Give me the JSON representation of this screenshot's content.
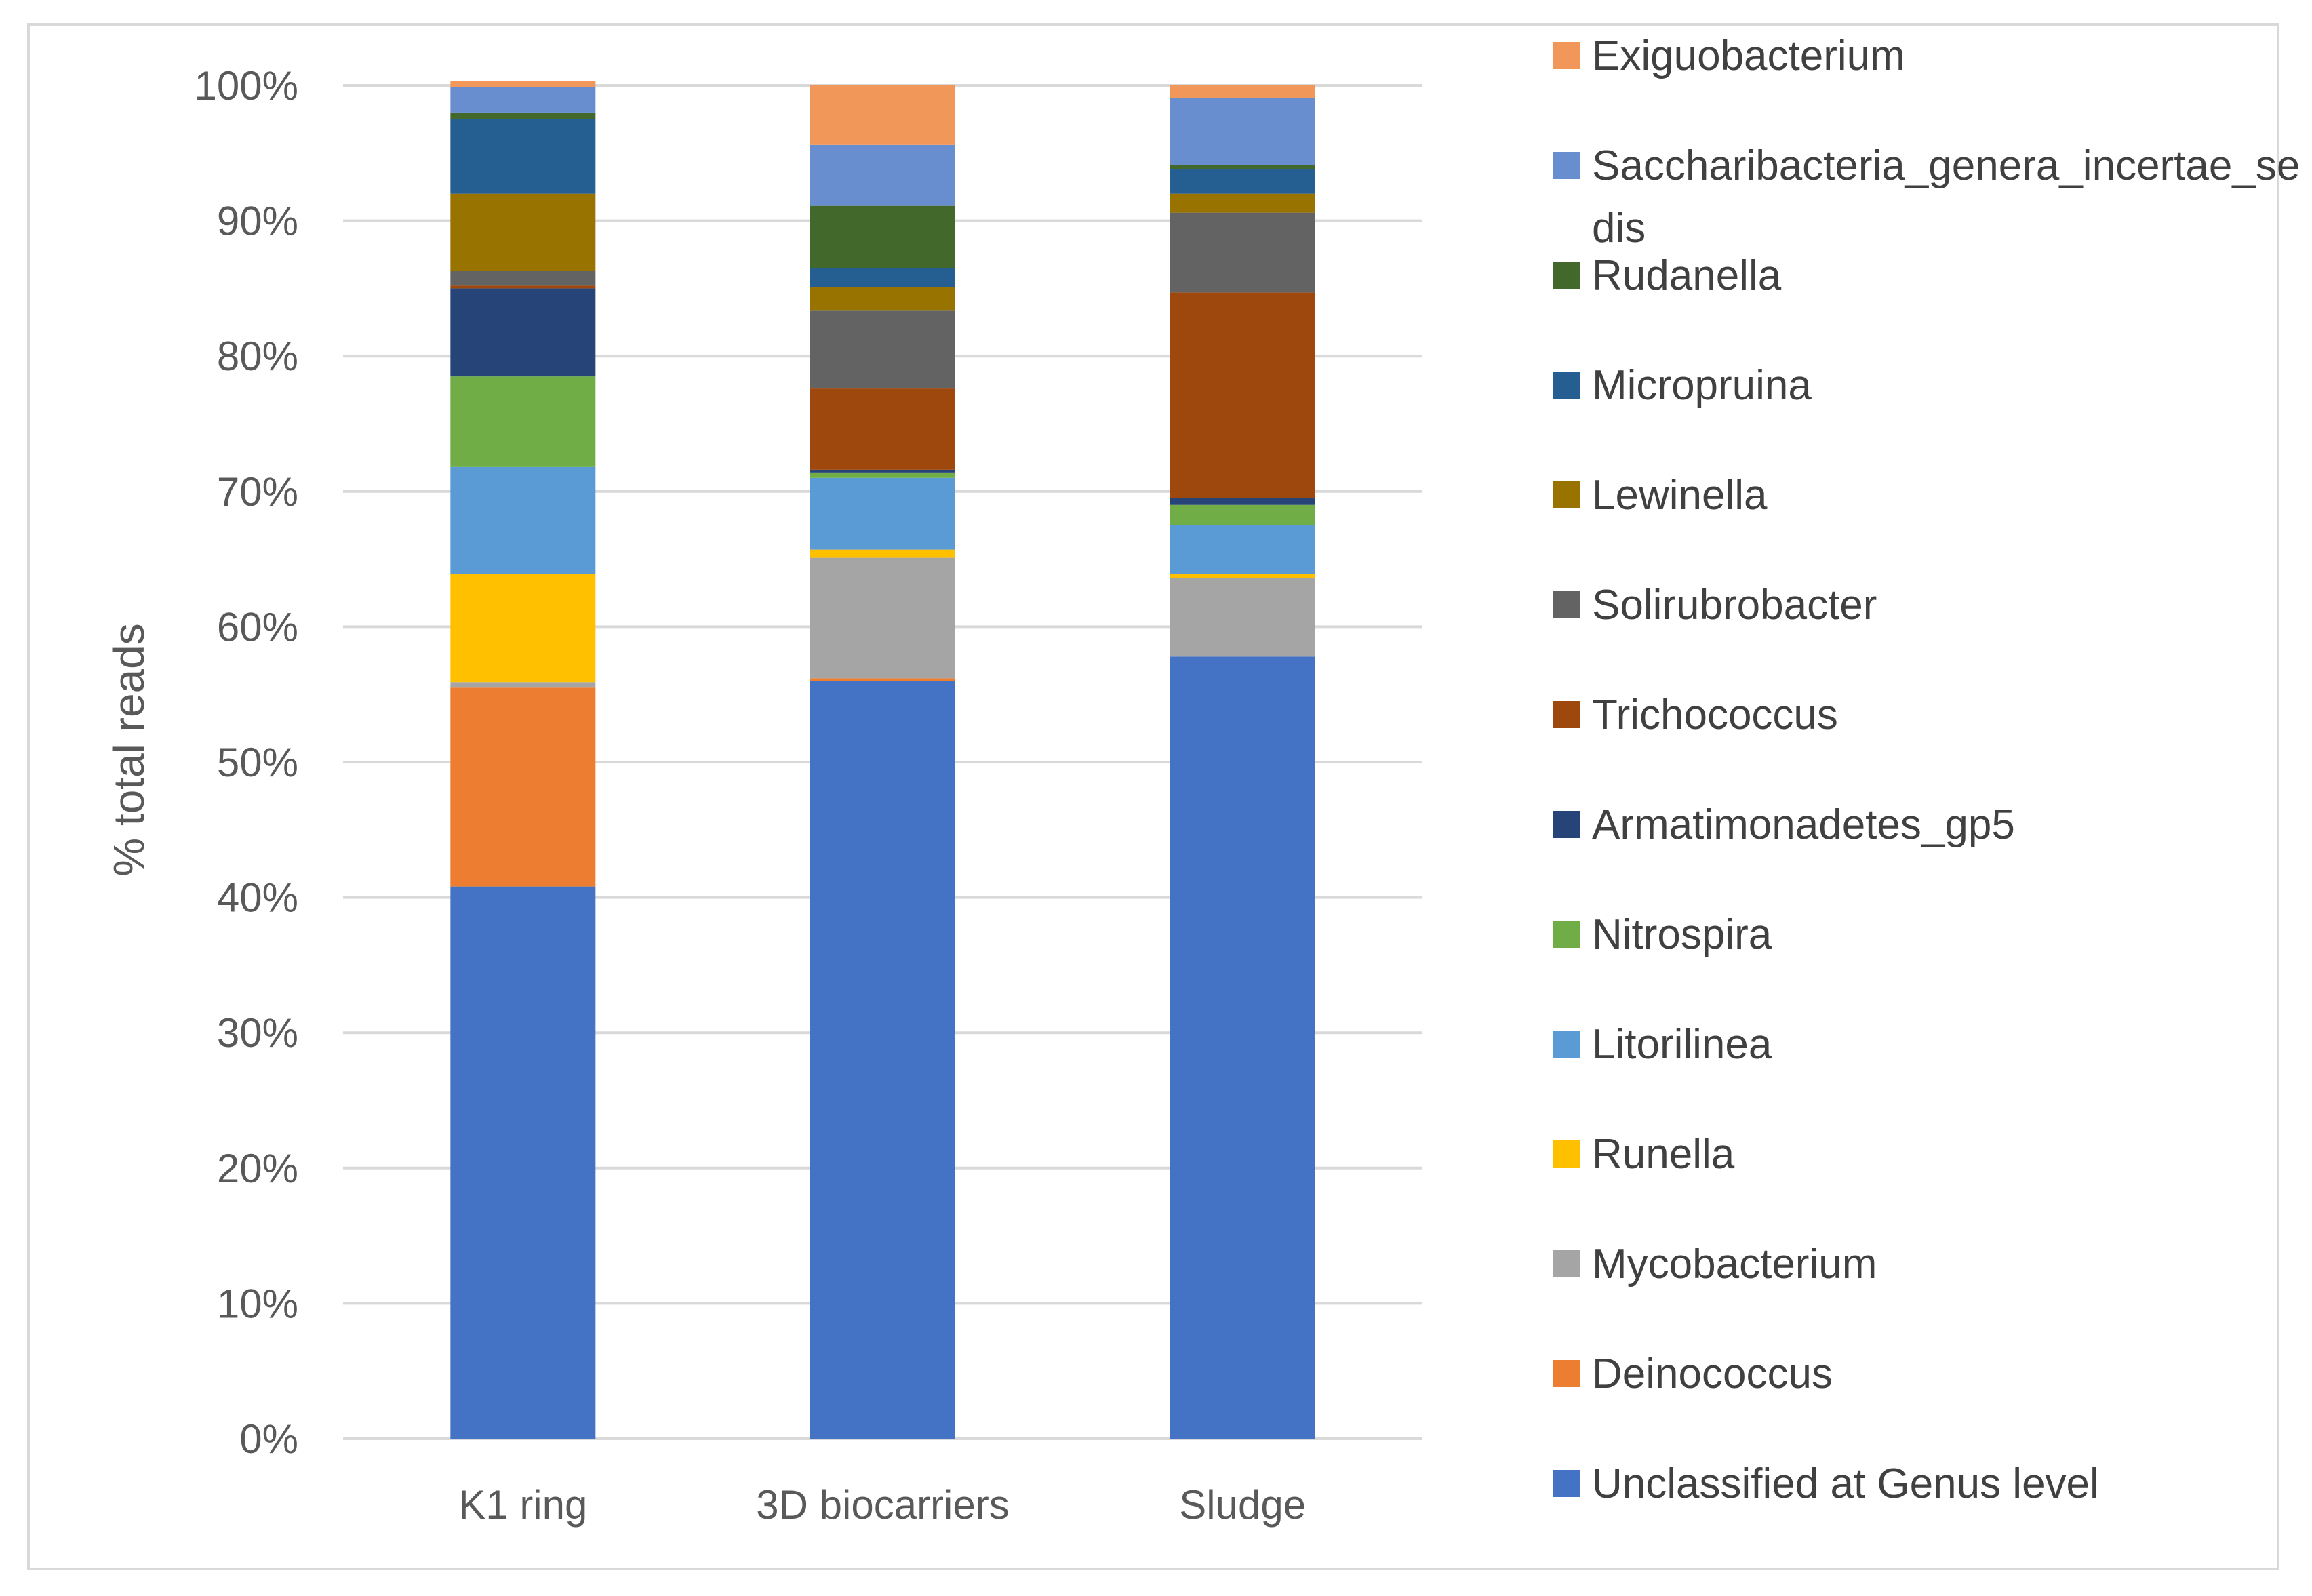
{
  "chart_data": {
    "type": "bar",
    "stacked": true,
    "percent": true,
    "title": "",
    "xlabel": "",
    "ylabel": "% total reads",
    "ylim": [
      0,
      100
    ],
    "yticks": [
      "0%",
      "10%",
      "20%",
      "30%",
      "40%",
      "50%",
      "60%",
      "70%",
      "80%",
      "90%",
      "100%"
    ],
    "categories": [
      "K1 ring",
      "3D biocarriers",
      "Sludge"
    ],
    "legend_position": "right",
    "series": [
      {
        "name": "Unclassified at Genus level",
        "color": "#4472c4",
        "values": [
          40.8,
          56.0,
          57.8
        ]
      },
      {
        "name": "Deinococcus",
        "color": "#ed7d31",
        "values": [
          14.7,
          0.2,
          0.0
        ]
      },
      {
        "name": "Mycobacterium",
        "color": "#a5a5a5",
        "values": [
          0.4,
          8.9,
          5.8
        ]
      },
      {
        "name": "Runella",
        "color": "#ffc000",
        "values": [
          8.0,
          0.6,
          0.3
        ]
      },
      {
        "name": "Litorilinea",
        "color": "#5b9bd5",
        "values": [
          7.9,
          5.3,
          3.6
        ]
      },
      {
        "name": "Nitrospira",
        "color": "#70ad47",
        "values": [
          6.7,
          0.4,
          1.5
        ]
      },
      {
        "name": "Armatimonadetes_gp5",
        "color": "#264478",
        "values": [
          6.5,
          0.2,
          0.5
        ]
      },
      {
        "name": "Trichococcus",
        "color": "#9e480e",
        "values": [
          0.2,
          6.0,
          15.2
        ]
      },
      {
        "name": "Solirubrobacter",
        "color": "#636363",
        "values": [
          1.1,
          5.8,
          5.9
        ]
      },
      {
        "name": "Lewinella",
        "color": "#997300",
        "values": [
          5.7,
          1.7,
          1.4
        ]
      },
      {
        "name": "Micropruina",
        "color": "#255e91",
        "values": [
          5.5,
          1.4,
          1.8
        ]
      },
      {
        "name": "Rudanella",
        "color": "#43682b",
        "values": [
          0.5,
          4.6,
          0.3
        ]
      },
      {
        "name": "Saccharibacteria_genera_incertae_sedis",
        "color": "#698ed0",
        "values": [
          1.9,
          4.5,
          5.0
        ]
      },
      {
        "name": "Exiguobacterium",
        "color": "#f1975a",
        "values": [
          0.4,
          4.4,
          0.9
        ]
      }
    ]
  }
}
